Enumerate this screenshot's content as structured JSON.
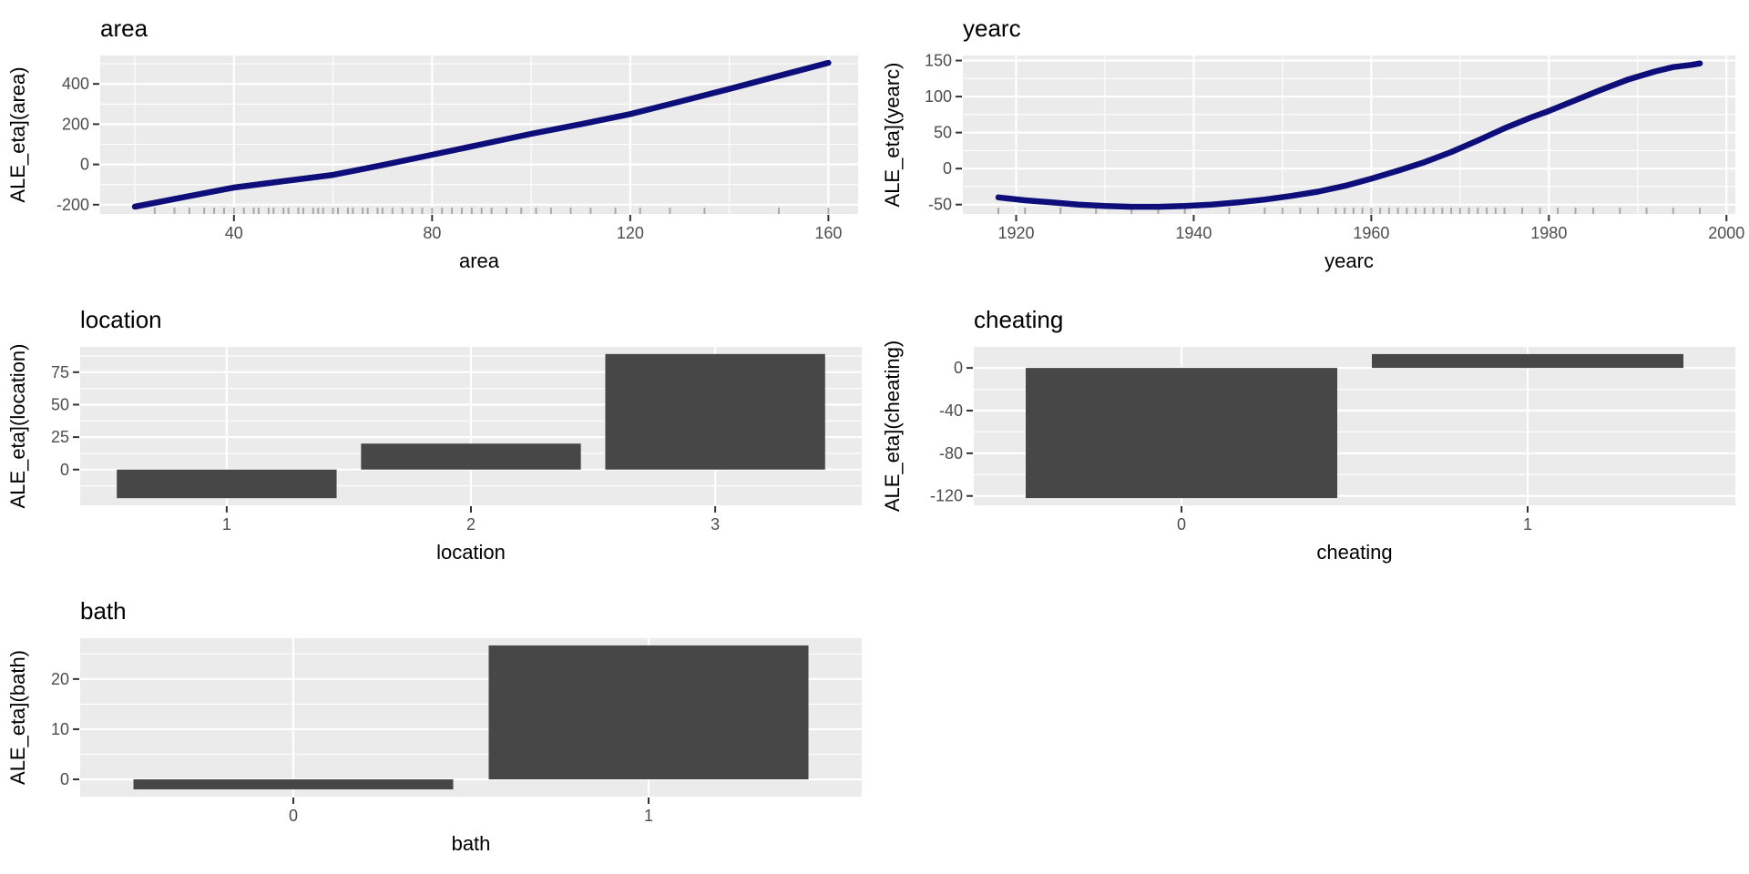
{
  "style": {
    "page_bg": "#FFFFFF",
    "panel_bg": "#EBEBEB",
    "grid_color": "#FFFFFF",
    "bar_fill": "#474747",
    "line_color": "#0E0E7B",
    "rug_color": "#858585",
    "axis_tick_color": "#333333",
    "tick_label_color": "#4D4D4D",
    "text_color": "#000000"
  },
  "chart_data": [
    {
      "id": "area",
      "type": "line",
      "title": "area",
      "xlabel": "area",
      "ylabel": "ALE_eta](area)",
      "x_ticks": [
        40,
        80,
        120,
        160
      ],
      "y_ticks": [
        -200,
        0,
        200,
        400
      ],
      "xlim": [
        13,
        166
      ],
      "ylim": [
        -246,
        541
      ],
      "grid": true,
      "series": [
        [
          20,
          -210
        ],
        [
          30,
          -162
        ],
        [
          40,
          -115
        ],
        [
          50,
          -83
        ],
        [
          60,
          -52
        ],
        [
          70,
          -3
        ],
        [
          80,
          48
        ],
        [
          90,
          100
        ],
        [
          100,
          152
        ],
        [
          110,
          200
        ],
        [
          120,
          250
        ],
        [
          130,
          312
        ],
        [
          140,
          375
        ],
        [
          150,
          440
        ],
        [
          160,
          505
        ]
      ],
      "rug_x": [
        24,
        28,
        31,
        34,
        36,
        38,
        40,
        42,
        44,
        45,
        47,
        48,
        50,
        51,
        53,
        54,
        56,
        57,
        58,
        60,
        61,
        63,
        64,
        66,
        67,
        69,
        70,
        72,
        74,
        76,
        78,
        80,
        82,
        84,
        86,
        88,
        90,
        92,
        95,
        98,
        101,
        104,
        108,
        112,
        117,
        122,
        128,
        135,
        150,
        160
      ]
    },
    {
      "id": "yearc",
      "type": "line",
      "title": "yearc",
      "xlabel": "yearc",
      "ylabel": "ALE_eta](yearc)",
      "x_ticks": [
        1920,
        1940,
        1960,
        1980,
        2000
      ],
      "y_ticks": [
        -50,
        0,
        50,
        100,
        150
      ],
      "xlim": [
        1914,
        2001
      ],
      "ylim": [
        -63,
        157
      ],
      "grid": true,
      "series": [
        [
          1918,
          -40
        ],
        [
          1921,
          -44
        ],
        [
          1924,
          -47
        ],
        [
          1927,
          -50
        ],
        [
          1930,
          -52
        ],
        [
          1933,
          -53
        ],
        [
          1936,
          -53
        ],
        [
          1939,
          -52
        ],
        [
          1942,
          -50
        ],
        [
          1945,
          -47
        ],
        [
          1948,
          -43
        ],
        [
          1951,
          -38
        ],
        [
          1954,
          -32
        ],
        [
          1957,
          -24
        ],
        [
          1960,
          -14
        ],
        [
          1963,
          -3
        ],
        [
          1966,
          9
        ],
        [
          1969,
          23
        ],
        [
          1972,
          39
        ],
        [
          1975,
          56
        ],
        [
          1978,
          71
        ],
        [
          1980,
          80
        ],
        [
          1983,
          95
        ],
        [
          1986,
          110
        ],
        [
          1989,
          124
        ],
        [
          1992,
          135
        ],
        [
          1994,
          141
        ],
        [
          1996,
          144
        ],
        [
          1997,
          146
        ]
      ],
      "rug_x": [
        1918,
        1921,
        1925,
        1929,
        1933,
        1936,
        1939,
        1944,
        1948,
        1950,
        1952,
        1954,
        1956,
        1957,
        1958,
        1959,
        1960,
        1961,
        1962,
        1963,
        1964,
        1965,
        1966,
        1967,
        1968,
        1969,
        1970,
        1971,
        1972,
        1973,
        1974,
        1975,
        1977,
        1979,
        1981,
        1983,
        1985,
        1988,
        1991,
        1994,
        1997
      ]
    },
    {
      "id": "location",
      "type": "bar",
      "title": "location",
      "xlabel": "location",
      "ylabel": "ALE_eta](location)",
      "categories": [
        "1",
        "2",
        "3"
      ],
      "values": [
        -22,
        20,
        89
      ],
      "y_ticks": [
        0,
        25,
        50,
        75
      ],
      "ylim": [
        -27.5,
        94.5
      ],
      "grid": true
    },
    {
      "id": "cheating",
      "type": "bar",
      "title": "cheating",
      "xlabel": "cheating",
      "ylabel": "ALE_eta](cheating)",
      "categories": [
        "0",
        "1"
      ],
      "values": [
        -122,
        13
      ],
      "y_ticks": [
        -120,
        -80,
        -40,
        0
      ],
      "ylim": [
        -128.75,
        19.75
      ],
      "grid": true
    },
    {
      "id": "bath",
      "type": "bar",
      "title": "bath",
      "xlabel": "bath",
      "ylabel": "ALE_eta](bath)",
      "categories": [
        "0",
        "1"
      ],
      "values": [
        -2,
        26.7
      ],
      "y_ticks": [
        0,
        10,
        20
      ],
      "ylim": [
        -3.44,
        28.14
      ],
      "grid": true
    }
  ]
}
